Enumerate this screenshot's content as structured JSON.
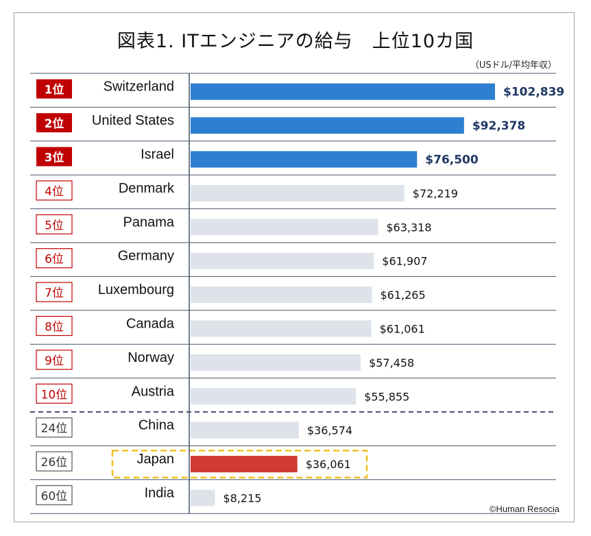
{
  "title": "図表1. ITエンジニアの給与　上位10カ国",
  "unit": "（USドル/平均年収）",
  "copyright": "©Human Resocia",
  "colors": {
    "top3": "#2e7fd0",
    "default": "#dee3ea",
    "japan": "#d03a32",
    "rank_red": "#c00000",
    "rank_gray": "#555555",
    "value_bold": "#1f3864",
    "highlight_border": "#f0c020"
  },
  "chart_data": {
    "type": "bar",
    "orientation": "horizontal",
    "xlim": [
      0,
      102839
    ],
    "rows": [
      {
        "rank": "1位",
        "country": "Switzerland",
        "value": 102839,
        "label": "$102,839",
        "style": "top3"
      },
      {
        "rank": "2位",
        "country": "United States",
        "value": 92378,
        "label": "$92,378",
        "style": "top3"
      },
      {
        "rank": "3位",
        "country": "Israel",
        "value": 76500,
        "label": "$76,500",
        "style": "top3"
      },
      {
        "rank": "4位",
        "country": "Denmark",
        "value": 72219,
        "label": "$72,219",
        "style": "top10"
      },
      {
        "rank": "5位",
        "country": "Panama",
        "value": 63318,
        "label": "$63,318",
        "style": "top10"
      },
      {
        "rank": "6位",
        "country": "Germany",
        "value": 61907,
        "label": "$61,907",
        "style": "top10"
      },
      {
        "rank": "7位",
        "country": "Luxembourg",
        "value": 61265,
        "label": "$61,265",
        "style": "top10"
      },
      {
        "rank": "8位",
        "country": "Canada",
        "value": 61061,
        "label": "$61,061",
        "style": "top10"
      },
      {
        "rank": "9位",
        "country": "Norway",
        "value": 57458,
        "label": "$57,458",
        "style": "top10"
      },
      {
        "rank": "10位",
        "country": "Austria",
        "value": 55855,
        "label": "$55,855",
        "style": "top10"
      },
      {
        "rank": "24位",
        "country": "China",
        "value": 36574,
        "label": "$36,574",
        "style": "other"
      },
      {
        "rank": "26位",
        "country": "Japan",
        "value": 36061,
        "label": "$36,061",
        "style": "japan",
        "highlight": true
      },
      {
        "rank": "60位",
        "country": "India",
        "value": 8215,
        "label": "$8,215",
        "style": "other"
      }
    ]
  }
}
